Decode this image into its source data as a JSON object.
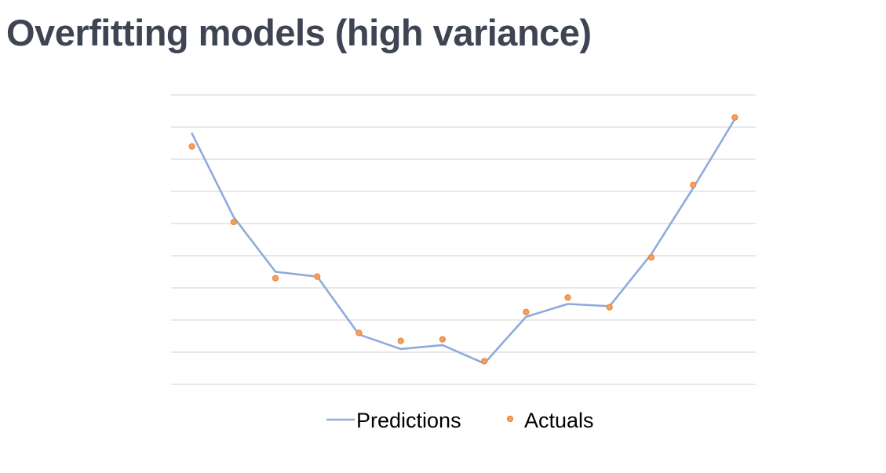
{
  "slide": {
    "title": "Overfitting models (high variance)"
  },
  "colors": {
    "title": "#3f4453",
    "gridline": "#d9d9d9",
    "predictions_line": "#8faadc",
    "actuals_marker_fill": "#f4a15d",
    "actuals_marker_stroke": "#ed7d31",
    "legend_text": "#000000"
  },
  "chart_data": {
    "type": "line",
    "title": "",
    "xlabel": "",
    "ylabel": "",
    "grid": true,
    "axis_labels_shown": false,
    "legend_position": "bottom",
    "x": [
      1,
      2,
      3,
      4,
      5,
      6,
      7,
      8,
      9,
      10,
      11,
      12,
      13,
      14
    ],
    "xlim": [
      0.5,
      14.5
    ],
    "ylim": [
      0,
      9
    ],
    "gridline_count": 10,
    "series": [
      {
        "name": "Predictions",
        "kind": "line",
        "values": [
          7.8,
          5.2,
          3.5,
          3.35,
          1.55,
          1.1,
          1.22,
          0.65,
          2.1,
          2.5,
          2.43,
          4.05,
          6.1,
          8.25
        ]
      },
      {
        "name": "Actuals",
        "kind": "scatter",
        "values": [
          7.4,
          5.05,
          3.3,
          3.35,
          1.6,
          1.35,
          1.4,
          0.72,
          2.25,
          2.7,
          2.4,
          3.95,
          6.2,
          8.3
        ]
      }
    ]
  }
}
